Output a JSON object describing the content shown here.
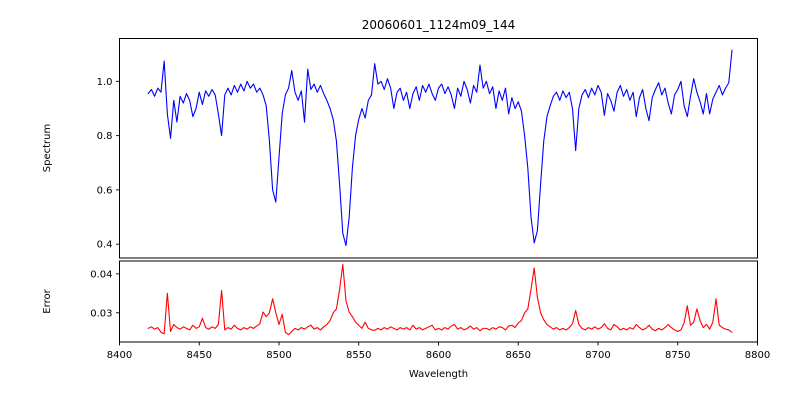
{
  "figure": {
    "background": "#ffffff",
    "frame_color": "#000000",
    "text_color": "#000000"
  },
  "chart_data": {
    "type": "line",
    "title": "20060601_1124m09_144",
    "xlabel": "Wavelength",
    "grid": false,
    "legend": null,
    "xlim": [
      8400,
      8800
    ],
    "xticks": [
      8400,
      8450,
      8500,
      8550,
      8600,
      8650,
      8700,
      8750,
      8800
    ],
    "xtick_labels": [
      "8400",
      "8450",
      "8500",
      "8550",
      "8600",
      "8650",
      "8700",
      "8750",
      "8800"
    ],
    "panels": [
      {
        "name": "spectrum",
        "ylabel": "Spectrum",
        "ylim": [
          0.349,
          1.158
        ],
        "yticks": [
          0.4,
          0.6,
          0.8,
          1.0
        ],
        "ytick_labels": [
          "0.4",
          "0.6",
          "0.8",
          "1.0"
        ],
        "line_color": "#0000ff",
        "x_start": 8418,
        "x_step": 2,
        "values": [
          0.955,
          0.97,
          0.945,
          0.975,
          0.96,
          1.075,
          0.88,
          0.79,
          0.93,
          0.85,
          0.945,
          0.92,
          0.955,
          0.93,
          0.87,
          0.9,
          0.96,
          0.915,
          0.965,
          0.945,
          0.97,
          0.95,
          0.88,
          0.8,
          0.95,
          0.975,
          0.95,
          0.985,
          0.96,
          0.99,
          0.965,
          1.0,
          0.975,
          0.99,
          0.96,
          0.975,
          0.95,
          0.91,
          0.78,
          0.6,
          0.555,
          0.72,
          0.88,
          0.95,
          0.975,
          1.04,
          0.96,
          0.93,
          0.965,
          0.85,
          1.045,
          0.97,
          0.99,
          0.96,
          0.985,
          0.955,
          0.93,
          0.9,
          0.86,
          0.78,
          0.62,
          0.44,
          0.395,
          0.5,
          0.68,
          0.8,
          0.86,
          0.9,
          0.865,
          0.93,
          0.95,
          1.065,
          0.99,
          1.0,
          0.97,
          1.01,
          0.975,
          0.9,
          0.96,
          0.975,
          0.93,
          0.96,
          0.9,
          0.955,
          0.98,
          0.93,
          0.985,
          0.96,
          0.99,
          0.955,
          0.93,
          0.975,
          0.99,
          0.955,
          0.98,
          0.95,
          0.9,
          0.975,
          0.945,
          1.0,
          0.97,
          0.92,
          0.985,
          0.96,
          1.06,
          0.975,
          1.0,
          0.955,
          0.98,
          0.9,
          0.965,
          0.93,
          0.975,
          0.88,
          0.94,
          0.9,
          0.925,
          0.89,
          0.8,
          0.68,
          0.5,
          0.405,
          0.45,
          0.62,
          0.78,
          0.87,
          0.91,
          0.945,
          0.96,
          0.93,
          0.965,
          0.94,
          0.96,
          0.9,
          0.745,
          0.9,
          0.95,
          0.97,
          0.94,
          0.975,
          0.95,
          0.985,
          0.96,
          0.875,
          0.955,
          0.93,
          0.89,
          0.96,
          0.985,
          0.945,
          0.97,
          0.93,
          0.96,
          0.87,
          0.94,
          0.97,
          0.9,
          0.855,
          0.94,
          0.97,
          0.995,
          0.95,
          0.975,
          0.92,
          0.88,
          0.95,
          0.97,
          1.0,
          0.91,
          0.87,
          0.945,
          1.01,
          0.96,
          0.925,
          0.88,
          0.955,
          0.88,
          0.935,
          0.96,
          0.985,
          0.95,
          0.975,
          0.995,
          1.115
        ]
      },
      {
        "name": "error",
        "ylabel": "Error",
        "ylim": [
          0.0225,
          0.0433
        ],
        "yticks": [
          0.03,
          0.04
        ],
        "ytick_labels": [
          "0.03",
          "0.04"
        ],
        "line_color": "#ff0000",
        "x_start": 8418,
        "x_step": 2,
        "values": [
          0.026,
          0.0264,
          0.0258,
          0.0262,
          0.025,
          0.0246,
          0.035,
          0.0252,
          0.027,
          0.0262,
          0.0258,
          0.0264,
          0.026,
          0.0256,
          0.0268,
          0.026,
          0.0264,
          0.0286,
          0.0262,
          0.0258,
          0.0264,
          0.026,
          0.027,
          0.0357,
          0.0256,
          0.0262,
          0.0258,
          0.0268,
          0.026,
          0.0256,
          0.0262,
          0.0258,
          0.0264,
          0.026,
          0.0266,
          0.0272,
          0.0302,
          0.029,
          0.03,
          0.0336,
          0.03,
          0.027,
          0.0296,
          0.025,
          0.0244,
          0.0252,
          0.026,
          0.0256,
          0.0262,
          0.0258,
          0.0264,
          0.0268,
          0.0258,
          0.0262,
          0.0256,
          0.0264,
          0.027,
          0.028,
          0.03,
          0.031,
          0.036,
          0.0424,
          0.033,
          0.0302,
          0.029,
          0.0276,
          0.0268,
          0.026,
          0.0276,
          0.026,
          0.0256,
          0.0255,
          0.026,
          0.0256,
          0.0262,
          0.0258,
          0.0264,
          0.026,
          0.0256,
          0.0262,
          0.0258,
          0.0262,
          0.0256,
          0.0268,
          0.0258,
          0.0262,
          0.0256,
          0.026,
          0.0264,
          0.0268,
          0.0256,
          0.026,
          0.0256,
          0.0262,
          0.0258,
          0.0266,
          0.027,
          0.0258,
          0.0262,
          0.0256,
          0.026,
          0.0266,
          0.0258,
          0.0262,
          0.0254,
          0.026,
          0.026,
          0.0256,
          0.0262,
          0.0258,
          0.0264,
          0.0262,
          0.0256,
          0.0266,
          0.0268,
          0.0262,
          0.0274,
          0.028,
          0.03,
          0.031,
          0.036,
          0.0415,
          0.034,
          0.03,
          0.0282,
          0.027,
          0.0264,
          0.0258,
          0.0262,
          0.0256,
          0.026,
          0.0256,
          0.0262,
          0.0272,
          0.0306,
          0.027,
          0.026,
          0.0256,
          0.0262,
          0.0258,
          0.0264,
          0.0258,
          0.0262,
          0.0272,
          0.026,
          0.0256,
          0.027,
          0.0264,
          0.0256,
          0.026,
          0.0256,
          0.0262,
          0.0258,
          0.027,
          0.0262,
          0.0256,
          0.026,
          0.0268,
          0.0258,
          0.0254,
          0.026,
          0.0256,
          0.0262,
          0.027,
          0.0262,
          0.0256,
          0.0252,
          0.0256,
          0.0274,
          0.0318,
          0.0268,
          0.0276,
          0.031,
          0.028,
          0.0262,
          0.027,
          0.0258,
          0.0276,
          0.0336,
          0.0268,
          0.0262,
          0.0258,
          0.0256,
          0.025
        ]
      }
    ]
  }
}
